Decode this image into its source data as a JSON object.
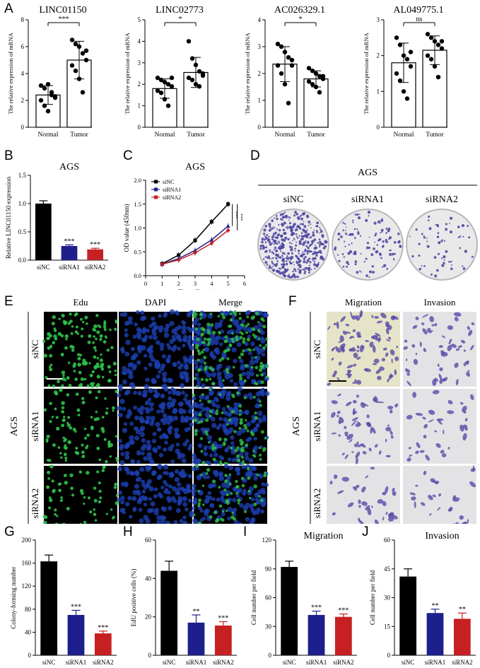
{
  "panel_letters": {
    "A": "A",
    "B": "B",
    "C": "C",
    "D": "D",
    "E": "E",
    "F": "F",
    "G": "G",
    "H": "H",
    "I": "I",
    "J": "J"
  },
  "panelA": [
    {
      "title": "LINC01150",
      "ylabel": "The relative expression of mRNA",
      "ymax": 8,
      "ticks": [
        0,
        2,
        4,
        6,
        8
      ],
      "sig": "***",
      "categories": [
        "Normal",
        "Tumor"
      ],
      "means": [
        2.4,
        5.0
      ],
      "sds": [
        0.7,
        1.4
      ],
      "points": [
        [
          3.1,
          2.9,
          3.2,
          2.6,
          2.2,
          2.0,
          1.6,
          1.2,
          2.4,
          2.3
        ],
        [
          6.5,
          6.2,
          6.0,
          5.5,
          5.0,
          4.6,
          4.2,
          3.6,
          2.6,
          5.7
        ]
      ]
    },
    {
      "title": "LINC02773",
      "ylabel": "The relative expression of mRNA",
      "ymax": 5,
      "ticks": [
        0,
        1,
        2,
        3,
        4,
        5
      ],
      "sig": "*",
      "categories": [
        "Normal",
        "Tumor"
      ],
      "means": [
        1.8,
        2.55
      ],
      "sds": [
        0.45,
        0.7
      ],
      "points": [
        [
          2.3,
          2.2,
          2.1,
          2.0,
          1.9,
          1.7,
          1.6,
          1.3,
          1.0,
          2.3
        ],
        [
          4.0,
          3.2,
          2.9,
          2.6,
          2.5,
          2.3,
          2.2,
          2.0,
          1.9,
          2.4
        ]
      ]
    },
    {
      "title": "AC026329.1",
      "ylabel": "The relative expression of mRNA",
      "ymax": 4,
      "ticks": [
        0,
        1,
        2,
        3,
        4
      ],
      "sig": "*",
      "categories": [
        "Normal",
        "Tumor"
      ],
      "means": [
        2.35,
        1.8
      ],
      "sds": [
        0.65,
        0.3
      ],
      "points": [
        [
          3.1,
          3.0,
          2.8,
          2.6,
          2.5,
          2.3,
          2.0,
          1.6,
          0.9,
          2.3
        ],
        [
          2.2,
          2.1,
          2.0,
          1.9,
          1.8,
          1.7,
          1.6,
          1.5,
          1.3,
          1.9
        ]
      ]
    },
    {
      "title": "AL049775.1",
      "ylabel": "The relative expression of mRNA",
      "ymax": 3,
      "ticks": [
        0,
        1,
        2,
        3
      ],
      "sig": "ns",
      "categories": [
        "Normal",
        "Tumor"
      ],
      "means": [
        1.8,
        2.15
      ],
      "sds": [
        0.55,
        0.4
      ],
      "points": [
        [
          2.5,
          2.3,
          2.0,
          1.9,
          1.7,
          1.5,
          1.3,
          1.0,
          0.8,
          2.1
        ],
        [
          2.6,
          2.5,
          2.4,
          2.3,
          2.2,
          2.0,
          1.9,
          1.7,
          1.4,
          2.4
        ]
      ]
    }
  ],
  "panelB": {
    "title": "AGS",
    "ylabel": "Relative LINC01150 expression",
    "ymax": 1.5,
    "ticks": [
      0,
      0.5,
      1.0,
      1.5
    ],
    "tick_labels": [
      "0.0",
      "0.5",
      "1.0",
      "1.5"
    ],
    "categories": [
      "siNC",
      "siRNA1",
      "siRNA2"
    ],
    "values": [
      1.0,
      0.25,
      0.19
    ],
    "errors": [
      0.05,
      0.02,
      0.02
    ],
    "sigs": [
      "",
      "***",
      "***"
    ],
    "colors": [
      "#000000",
      "#1d1f8c",
      "#c62023"
    ]
  },
  "panelC": {
    "title": "AGS",
    "ylabel": "OD value (450nm)",
    "xlabel": "Time (Days)",
    "x_ticks": [
      0,
      1,
      2,
      3,
      4,
      5,
      6
    ],
    "y_ticks": [
      0.0,
      0.5,
      1.0,
      1.5,
      2.0
    ],
    "y_tick_labels": [
      "0.0",
      "0.5",
      "1.0",
      "1.5",
      "2.0"
    ],
    "series": [
      {
        "name": "siNC",
        "color": "#000000",
        "values": [
          0.25,
          0.43,
          0.74,
          1.13,
          1.5
        ],
        "marker": "square"
      },
      {
        "name": "siRNA1",
        "color": "#1d1f8c",
        "values": [
          0.24,
          0.36,
          0.53,
          0.75,
          1.04
        ],
        "marker": "triangle"
      },
      {
        "name": "siRNA2",
        "color": "#c62023",
        "values": [
          0.24,
          0.33,
          0.48,
          0.68,
          0.95
        ],
        "marker": "diamond"
      }
    ],
    "sigs": [
      "***",
      "***"
    ]
  },
  "panelD": {
    "title": "AGS",
    "labels": [
      "siNC",
      "siRNA1",
      "siRNA2"
    ],
    "densities": [
      420,
      120,
      60
    ]
  },
  "panelE": {
    "columns": [
      "Edu",
      "DAPI",
      "Merge"
    ],
    "rows": [
      "siNC",
      "siRNA1",
      "siRNA2"
    ],
    "side_label": "AGS"
  },
  "panelF": {
    "columns": [
      "Migration",
      "Invasion"
    ],
    "rows": [
      "siNC",
      "siRNA1",
      "siRNA2"
    ],
    "side_label": "AGS"
  },
  "bottom": [
    {
      "ylabel": "Colony-forming number",
      "title": "",
      "ymax": 200,
      "ticks": [
        0,
        40,
        80,
        120,
        160,
        200
      ],
      "categories": [
        "siNC",
        "siRNA1",
        "siRNA2"
      ],
      "values": [
        163,
        70,
        38
      ],
      "errors": [
        11,
        8,
        4
      ],
      "sigs": [
        "",
        "***",
        "***"
      ]
    },
    {
      "ylabel": "EdU positive cells (%)",
      "title": "",
      "ymax": 60,
      "ticks": [
        0,
        20,
        40,
        60
      ],
      "categories": [
        "siNC",
        "siRNA1",
        "siRNA2"
      ],
      "values": [
        44,
        17,
        15.5
      ],
      "errors": [
        5,
        4,
        2
      ],
      "sigs": [
        "",
        "**",
        "***"
      ]
    },
    {
      "ylabel": "Cell number per field",
      "title": "Migration",
      "ymax": 120,
      "ticks": [
        0,
        30,
        60,
        90,
        120
      ],
      "categories": [
        "siNC",
        "siRNA1",
        "siRNA2"
      ],
      "values": [
        92,
        42,
        40
      ],
      "errors": [
        6,
        4,
        3
      ],
      "sigs": [
        "",
        "***",
        "***"
      ]
    },
    {
      "ylabel": "Cell number per field",
      "title": "Invasion",
      "ymax": 60,
      "ticks": [
        0,
        15,
        30,
        45,
        60
      ],
      "categories": [
        "siNC",
        "siRNA1",
        "siRNA2"
      ],
      "values": [
        41,
        22,
        19
      ],
      "errors": [
        4,
        2,
        3
      ],
      "sigs": [
        "",
        "**",
        "**"
      ]
    }
  ],
  "colors": {
    "black": "#000000",
    "blue": "#1d1f8c",
    "red": "#c62023",
    "green": "#2fc24a",
    "dapi": "#1b3fb0",
    "stain": "#5a4aa8"
  }
}
